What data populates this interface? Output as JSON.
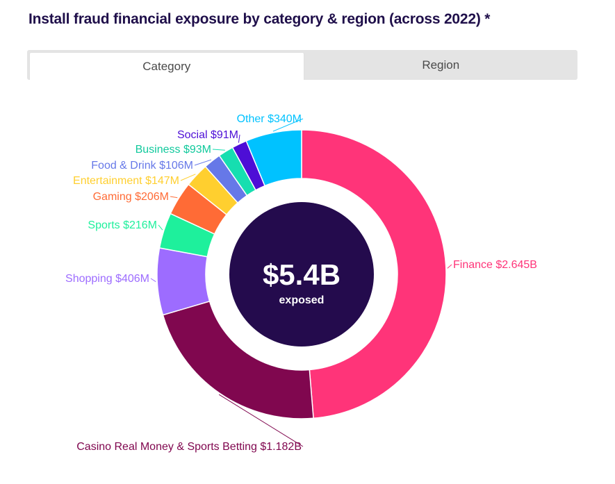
{
  "title": "Install fraud financial exposure by category & region (across 2022) *",
  "tabs": [
    {
      "label": "Category",
      "active": true
    },
    {
      "label": "Region",
      "active": false
    }
  ],
  "chart_data": {
    "type": "pie",
    "center_value": "$5.4B",
    "center_label": "exposed",
    "slices": [
      {
        "name": "Finance",
        "value": 2645,
        "label": "Finance $2.645B",
        "color": "#ff3479"
      },
      {
        "name": "Casino Real Money & Sports Betting",
        "value": 1182,
        "label": "Casino Real Money & Sports Betting $1.182B",
        "color": "#80074f"
      },
      {
        "name": "Shopping",
        "value": 406,
        "label": "Shopping $406M",
        "color": "#9d6cff"
      },
      {
        "name": "Sports",
        "value": 216,
        "label": "Sports $216M",
        "color": "#1ef09c"
      },
      {
        "name": "Gaming",
        "value": 206,
        "label": "Gaming $206M",
        "color": "#ff6b36"
      },
      {
        "name": "Entertainment",
        "value": 147,
        "label": "Entertainment $147M",
        "color": "#ffcf2f"
      },
      {
        "name": "Food & Drink",
        "value": 106,
        "label": "Food & Drink $106M",
        "color": "#6678e8"
      },
      {
        "name": "Business",
        "value": 93,
        "label": "Business $93M",
        "color": "#16deb0"
      },
      {
        "name": "Social",
        "value": 91,
        "label": "Social $91M",
        "color": "#4d0ed6"
      },
      {
        "name": "Other",
        "value": 340,
        "label": "Other $340M",
        "color": "#00c2ff"
      }
    ]
  }
}
